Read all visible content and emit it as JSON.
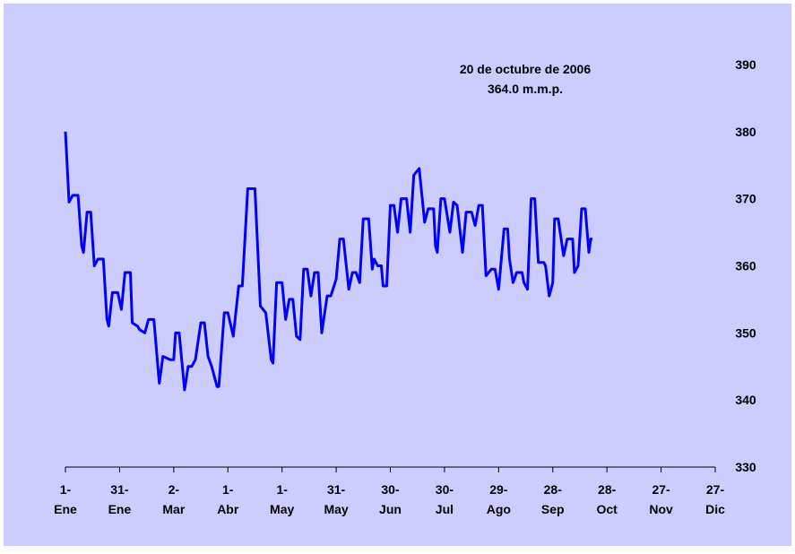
{
  "chart_data": {
    "type": "line",
    "annotation": [
      "20 de octubre de 2006",
      "364.0 m.m.p."
    ],
    "x": [
      0,
      2,
      4,
      7,
      9,
      10,
      12,
      14,
      16,
      18,
      21,
      23,
      24,
      26,
      29,
      31,
      33,
      36,
      37,
      40,
      41,
      44,
      46,
      49,
      52,
      54,
      58,
      60,
      61,
      63,
      66,
      68,
      70,
      72,
      75,
      77,
      79,
      81,
      84,
      85,
      88,
      90,
      93,
      96,
      98,
      101,
      105,
      108,
      111,
      114,
      115,
      117,
      120,
      122,
      124,
      126,
      128,
      130,
      132,
      134,
      136,
      138,
      140,
      142,
      145,
      147,
      150,
      152,
      154,
      157,
      159,
      161,
      163,
      165,
      168,
      170,
      171,
      173,
      175,
      176,
      178,
      180,
      182,
      184,
      186,
      189,
      191,
      193,
      196,
      199,
      201,
      204,
      205,
      206,
      208,
      210,
      213,
      215,
      217,
      220,
      222,
      225,
      227,
      229,
      231,
      233,
      236,
      238,
      240,
      243,
      245,
      246,
      248,
      250,
      253,
      254,
      256,
      258,
      260,
      262,
      265,
      266,
      268,
      270,
      271,
      273,
      276,
      278,
      281,
      282,
      284,
      286,
      288,
      290,
      291,
      292
    ],
    "series": [
      {
        "name": "m.m.p.",
        "color": "#0000ff",
        "values": [
          380,
          369.5,
          370.5,
          370.5,
          363,
          362,
          368,
          368,
          360,
          361,
          361,
          352,
          351,
          356,
          356,
          353.5,
          359,
          359,
          351.5,
          351,
          350.5,
          350,
          352,
          352,
          342.5,
          346.5,
          346,
          346,
          350,
          350,
          341.5,
          345,
          345,
          346,
          351.5,
          351.5,
          346.5,
          345,
          342,
          342,
          353,
          353,
          349.5,
          357,
          357,
          371.5,
          371.5,
          354,
          353,
          346,
          345.5,
          357.5,
          357.5,
          352,
          355,
          355,
          349.5,
          349,
          359.5,
          359.5,
          355.5,
          359,
          359,
          350,
          355.5,
          355.5,
          358,
          364,
          364,
          356.5,
          359,
          359,
          357.5,
          367,
          367,
          359.5,
          361,
          360,
          360,
          357,
          357,
          369,
          369,
          365,
          370,
          370,
          365,
          373.5,
          374.5,
          366.5,
          368.5,
          368.5,
          363,
          362,
          370,
          370,
          365,
          369.5,
          369,
          362,
          368,
          368,
          366,
          369,
          369,
          358.5,
          359.5,
          359.5,
          356.5,
          365.5,
          365.5,
          361,
          357.5,
          359,
          359,
          357.5,
          356.5,
          370,
          370,
          360.5,
          360.5,
          360,
          355.5,
          357.5,
          367,
          367,
          361.5,
          364,
          364,
          359,
          360,
          368.5,
          368.5,
          362,
          364,
          364
        ]
      }
    ],
    "xlim": [
      0,
      360
    ],
    "xticks": [
      {
        "value": 0,
        "label": "1-Ene"
      },
      {
        "value": 30,
        "label": "31-Ene"
      },
      {
        "value": 60,
        "label": "2-Mar"
      },
      {
        "value": 90,
        "label": "1-Abr"
      },
      {
        "value": 120,
        "label": "1-May"
      },
      {
        "value": 150,
        "label": "31-May"
      },
      {
        "value": 180,
        "label": "30-Jun"
      },
      {
        "value": 210,
        "label": "30-Jul"
      },
      {
        "value": 240,
        "label": "29-Ago"
      },
      {
        "value": 270,
        "label": "28-Sep"
      },
      {
        "value": 300,
        "label": "28-Oct"
      },
      {
        "value": 330,
        "label": "27-Nov"
      },
      {
        "value": 360,
        "label": "27-Dic"
      }
    ],
    "ylim": [
      330,
      390
    ],
    "yticks": [
      330,
      340,
      350,
      360,
      370,
      380,
      390
    ],
    "grid": false
  }
}
